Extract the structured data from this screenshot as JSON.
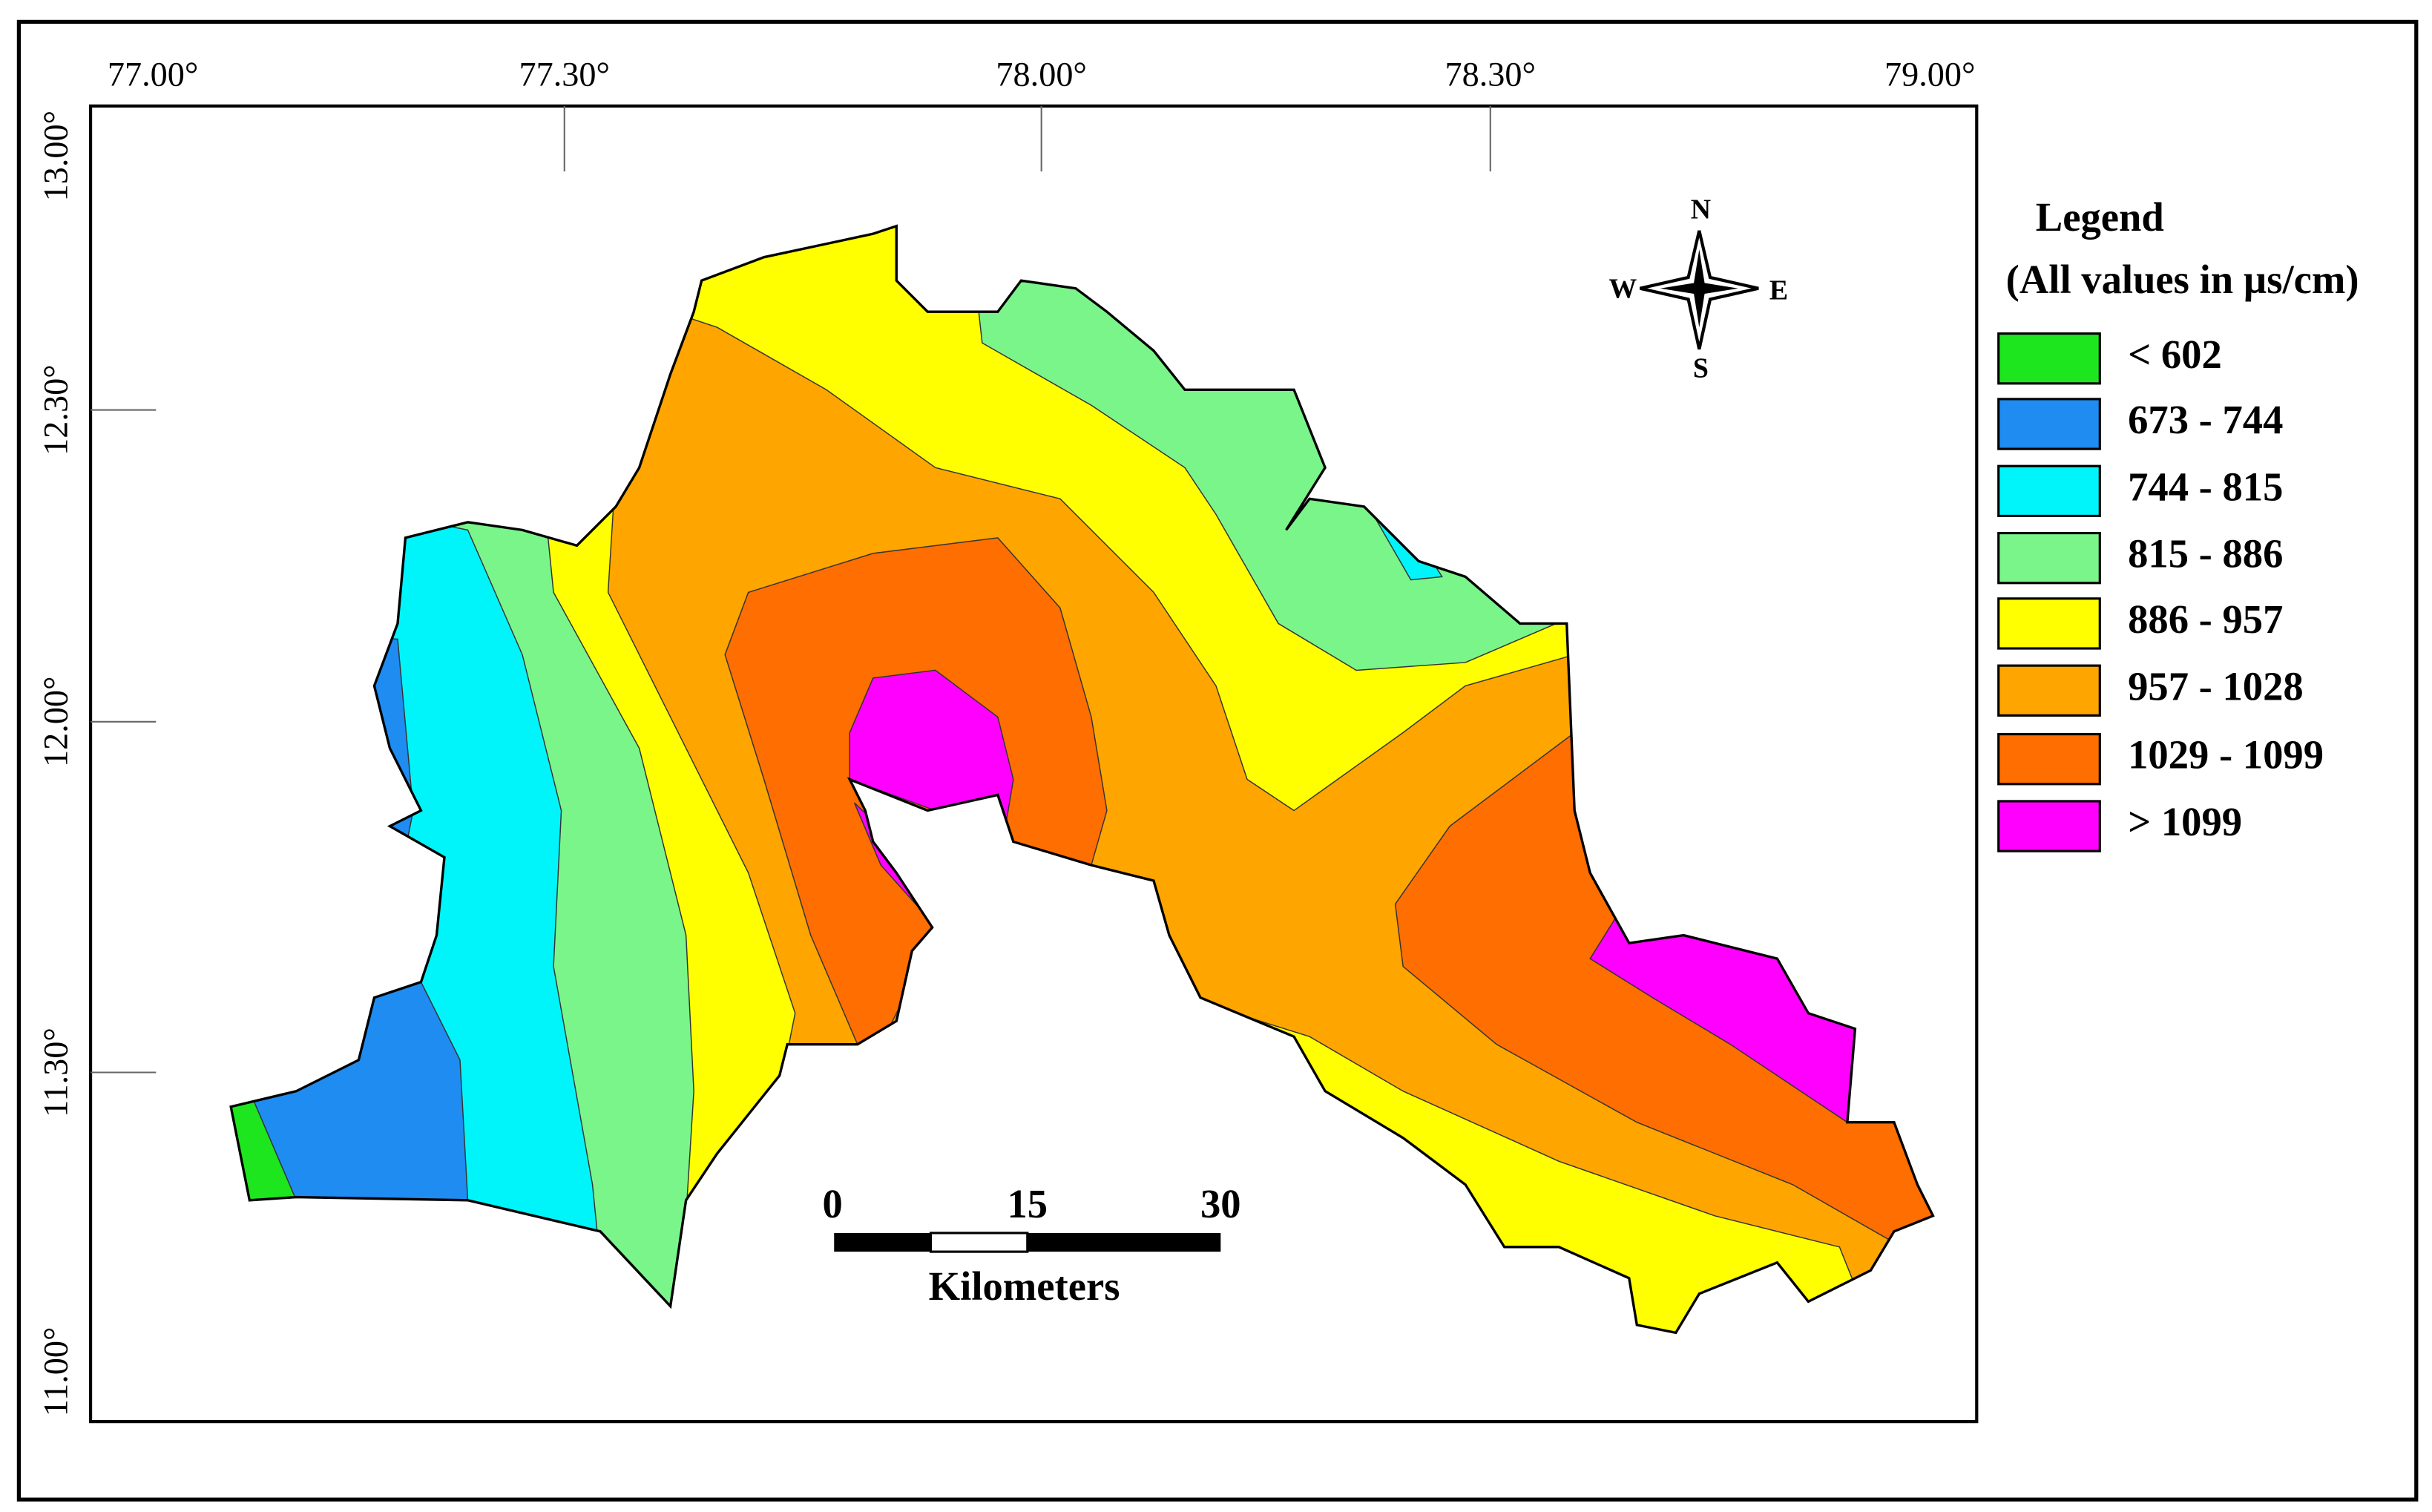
{
  "map": {
    "lon_ticks": [
      "77.00°",
      "77.30°",
      "78.00°",
      "78.30°",
      "79.00°"
    ],
    "lat_ticks": [
      "13.00°",
      "12.30°",
      "12.00°",
      "11.30°",
      "11.00°"
    ],
    "legend": {
      "title": "Legend",
      "subtitle": "(All values in µs/cm)",
      "items": [
        {
          "label": "< 602",
          "color": "#1ee61e"
        },
        {
          "label": "673 - 744",
          "color": "#1e8cf0"
        },
        {
          "label": "744 - 815",
          "color": "#00f5fa"
        },
        {
          "label": "815 - 886",
          "color": "#7af58a"
        },
        {
          "label": "886 - 957",
          "color": "#ffff00"
        },
        {
          "label": "957 - 1028",
          "color": "#ffa500"
        },
        {
          "label": "1029 - 1099",
          "color": "#ff6e00"
        },
        {
          "label": "> 1099",
          "color": "#ff00ff"
        }
      ]
    },
    "compass": {
      "north": "N",
      "south": "S",
      "east": "E",
      "west": "W"
    },
    "scale_bar": {
      "labels": [
        "0",
        "15",
        "30"
      ],
      "unit": "Kilometers"
    }
  }
}
